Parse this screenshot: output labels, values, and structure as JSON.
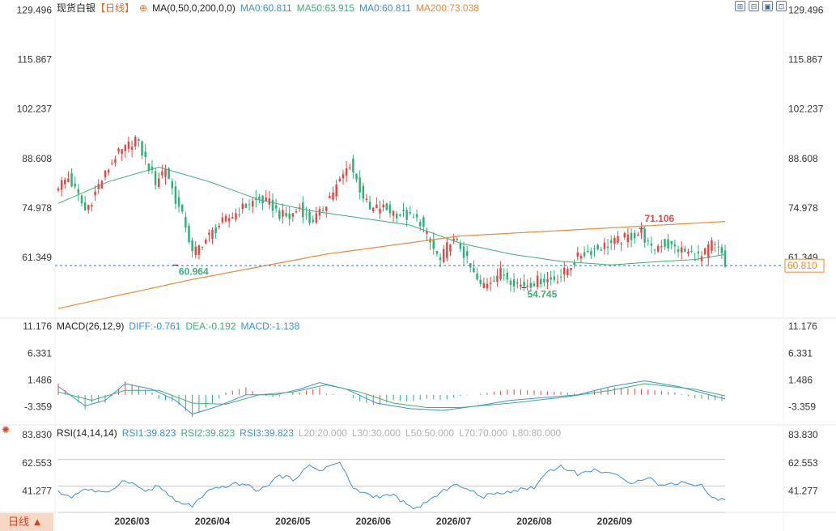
{
  "header": {
    "instrument": "现货白银",
    "period": "【日线】",
    "ma_label": "MA(0,50,0,200,0,0)",
    "ma_values": [
      {
        "label": "MA0:60.811",
        "color": "#3d8fd6"
      },
      {
        "label": "MA50:63.915",
        "color": "#3fae7a"
      },
      {
        "label": "MA0:60.811",
        "color": "#3d8fd6"
      },
      {
        "label": "MA200:73.038",
        "color": "#e88b3a"
      }
    ],
    "tools": [
      "⊞",
      "⊟",
      "▣",
      "⊡"
    ]
  },
  "macd_header": {
    "title": "MACD(26,12,9)",
    "items": [
      {
        "label": "DIFF:-0.761",
        "color": "#3d8fd6"
      },
      {
        "label": "DEA:-0.192",
        "color": "#3fae7a"
      },
      {
        "label": "MACD:-1.138",
        "color": "#3d8fd6"
      }
    ]
  },
  "rsi_header": {
    "title": "RSI(14,14,14)",
    "items": [
      {
        "label": "RSI1:39.823",
        "color": "#3d8fd6"
      },
      {
        "label": "RSI2:39.823",
        "color": "#3fae7a"
      },
      {
        "label": "RSI3:39.823",
        "color": "#3d8fd6"
      },
      {
        "label": "L20:20.000",
        "color": "#b0b0b0"
      },
      {
        "label": "L30:30.000",
        "color": "#b0b0b0"
      },
      {
        "label": "L50:50.000",
        "color": "#b0b0b0"
      },
      {
        "label": "L70:70.000",
        "color": "#b0b0b0"
      },
      {
        "label": "L80:80.000",
        "color": "#b0b0b0"
      }
    ]
  },
  "bottom_tab": "日线 ▲",
  "chart_data": {
    "type": "candlestick",
    "price_axis": {
      "ticks": [
        "129.496",
        "115.867",
        "102.237",
        "88.608",
        "74.978",
        "61.349"
      ],
      "range": [
        47,
        131
      ]
    },
    "last_price": "60.810",
    "annotations": [
      {
        "label": "60.964",
        "value": 60.964,
        "index": 35
      },
      {
        "label": "54.745",
        "value": 54.745,
        "index": 139
      },
      {
        "label": "71.106",
        "value": 71.106,
        "index": 174
      }
    ],
    "x_ticks": [
      {
        "label": "2026/03",
        "index": 22
      },
      {
        "label": "2026/04",
        "index": 46
      },
      {
        "label": "2026/05",
        "index": 70
      },
      {
        "label": "2026/06",
        "index": 94
      },
      {
        "label": "2026/07",
        "index": 118
      },
      {
        "label": "2026/08",
        "index": 142
      },
      {
        "label": "2026/09",
        "index": 166
      }
    ],
    "close_anchors": [
      [
        0,
        83
      ],
      [
        3,
        85
      ],
      [
        6,
        80
      ],
      [
        8,
        76
      ],
      [
        10,
        79
      ],
      [
        12,
        83
      ],
      [
        14,
        86
      ],
      [
        17,
        91
      ],
      [
        20,
        93
      ],
      [
        23,
        96
      ],
      [
        26,
        90
      ],
      [
        29,
        84
      ],
      [
        32,
        88
      ],
      [
        35,
        79
      ],
      [
        38,
        72
      ],
      [
        40,
        64
      ],
      [
        42,
        66
      ],
      [
        45,
        69
      ],
      [
        48,
        72
      ],
      [
        51,
        74
      ],
      [
        54,
        76
      ],
      [
        57,
        78
      ],
      [
        60,
        79
      ],
      [
        63,
        78
      ],
      [
        66,
        75
      ],
      [
        69,
        74
      ],
      [
        72,
        77
      ],
      [
        75,
        73
      ],
      [
        78,
        75
      ],
      [
        81,
        80
      ],
      [
        84,
        84
      ],
      [
        87,
        89
      ],
      [
        90,
        82
      ],
      [
        93,
        76
      ],
      [
        96,
        77
      ],
      [
        99,
        76
      ],
      [
        102,
        75
      ],
      [
        105,
        74
      ],
      [
        108,
        73
      ],
      [
        111,
        67
      ],
      [
        114,
        62
      ],
      [
        117,
        68
      ],
      [
        120,
        66
      ],
      [
        123,
        60
      ],
      [
        126,
        55
      ],
      [
        129,
        57
      ],
      [
        132,
        59
      ],
      [
        135,
        57
      ],
      [
        138,
        55.5
      ],
      [
        141,
        56
      ],
      [
        144,
        57
      ],
      [
        147,
        57
      ],
      [
        150,
        58
      ],
      [
        153,
        61
      ],
      [
        156,
        64
      ],
      [
        159,
        65
      ],
      [
        162,
        66
      ],
      [
        165,
        67
      ],
      [
        168,
        68
      ],
      [
        171,
        69
      ],
      [
        174,
        70
      ],
      [
        177,
        65
      ],
      [
        180,
        67
      ],
      [
        183,
        66
      ],
      [
        186,
        65
      ],
      [
        189,
        64
      ],
      [
        192,
        63
      ],
      [
        195,
        67
      ],
      [
        198,
        64
      ],
      [
        199,
        60.81
      ]
    ],
    "ma50_anchors": [
      [
        0,
        78
      ],
      [
        15,
        84
      ],
      [
        30,
        88
      ],
      [
        45,
        84
      ],
      [
        60,
        79
      ],
      [
        75,
        76
      ],
      [
        90,
        74
      ],
      [
        105,
        72
      ],
      [
        120,
        67
      ],
      [
        135,
        64
      ],
      [
        150,
        62
      ],
      [
        165,
        61
      ],
      [
        180,
        62
      ],
      [
        190,
        62.5
      ],
      [
        199,
        63.9
      ]
    ],
    "ma200_anchors": [
      [
        0,
        49
      ],
      [
        40,
        57
      ],
      [
        80,
        64
      ],
      [
        120,
        69
      ],
      [
        160,
        71
      ],
      [
        199,
        73
      ]
    ],
    "macd_axis": {
      "ticks": [
        "11.176",
        "6.331",
        "1.486",
        "-3.359"
      ],
      "range": [
        -5,
        12.5
      ]
    },
    "diff_anchors": [
      [
        0,
        1.5
      ],
      [
        8,
        -2
      ],
      [
        14,
        -1
      ],
      [
        20,
        2
      ],
      [
        28,
        1
      ],
      [
        35,
        -1
      ],
      [
        40,
        -3.5
      ],
      [
        48,
        -2
      ],
      [
        56,
        0
      ],
      [
        65,
        0
      ],
      [
        72,
        1
      ],
      [
        78,
        2.2
      ],
      [
        86,
        1
      ],
      [
        95,
        -1.5
      ],
      [
        105,
        -2.5
      ],
      [
        115,
        -2.8
      ],
      [
        125,
        -2
      ],
      [
        135,
        -1
      ],
      [
        145,
        -0.5
      ],
      [
        155,
        0
      ],
      [
        165,
        1.5
      ],
      [
        175,
        2.5
      ],
      [
        185,
        1.5
      ],
      [
        199,
        -0.761
      ]
    ],
    "dea_anchors": [
      [
        0,
        0.5
      ],
      [
        10,
        -1
      ],
      [
        20,
        0.8
      ],
      [
        30,
        0.8
      ],
      [
        40,
        -1.5
      ],
      [
        50,
        -1.7
      ],
      [
        60,
        0
      ],
      [
        70,
        0.5
      ],
      [
        80,
        1.8
      ],
      [
        90,
        0.5
      ],
      [
        100,
        -1.5
      ],
      [
        110,
        -2.3
      ],
      [
        120,
        -2.3
      ],
      [
        135,
        -1.5
      ],
      [
        150,
        -0.5
      ],
      [
        165,
        0.8
      ],
      [
        175,
        2
      ],
      [
        190,
        1
      ],
      [
        199,
        -0.192
      ]
    ],
    "rsi_axis": {
      "ticks": [
        "83.830",
        "62.553",
        "41.277"
      ],
      "range": [
        30,
        90
      ]
    },
    "rsi_anchors": [
      [
        0,
        45
      ],
      [
        4,
        42
      ],
      [
        8,
        48
      ],
      [
        14,
        44
      ],
      [
        20,
        55
      ],
      [
        26,
        46
      ],
      [
        30,
        50
      ],
      [
        35,
        38
      ],
      [
        40,
        35
      ],
      [
        45,
        46
      ],
      [
        50,
        50
      ],
      [
        55,
        52
      ],
      [
        60,
        46
      ],
      [
        66,
        58
      ],
      [
        70,
        55
      ],
      [
        75,
        65
      ],
      [
        78,
        62
      ],
      [
        84,
        68
      ],
      [
        88,
        48
      ],
      [
        94,
        42
      ],
      [
        100,
        43
      ],
      [
        106,
        32
      ],
      [
        110,
        38
      ],
      [
        114,
        44
      ],
      [
        118,
        52
      ],
      [
        122,
        47
      ],
      [
        127,
        42
      ],
      [
        132,
        45
      ],
      [
        137,
        47
      ],
      [
        142,
        49
      ],
      [
        146,
        61
      ],
      [
        150,
        65
      ],
      [
        155,
        59
      ],
      [
        160,
        62
      ],
      [
        165,
        60
      ],
      [
        170,
        52
      ],
      [
        176,
        57
      ],
      [
        180,
        50
      ],
      [
        186,
        53
      ],
      [
        192,
        50
      ],
      [
        196,
        40
      ],
      [
        199,
        39.823
      ]
    ]
  }
}
